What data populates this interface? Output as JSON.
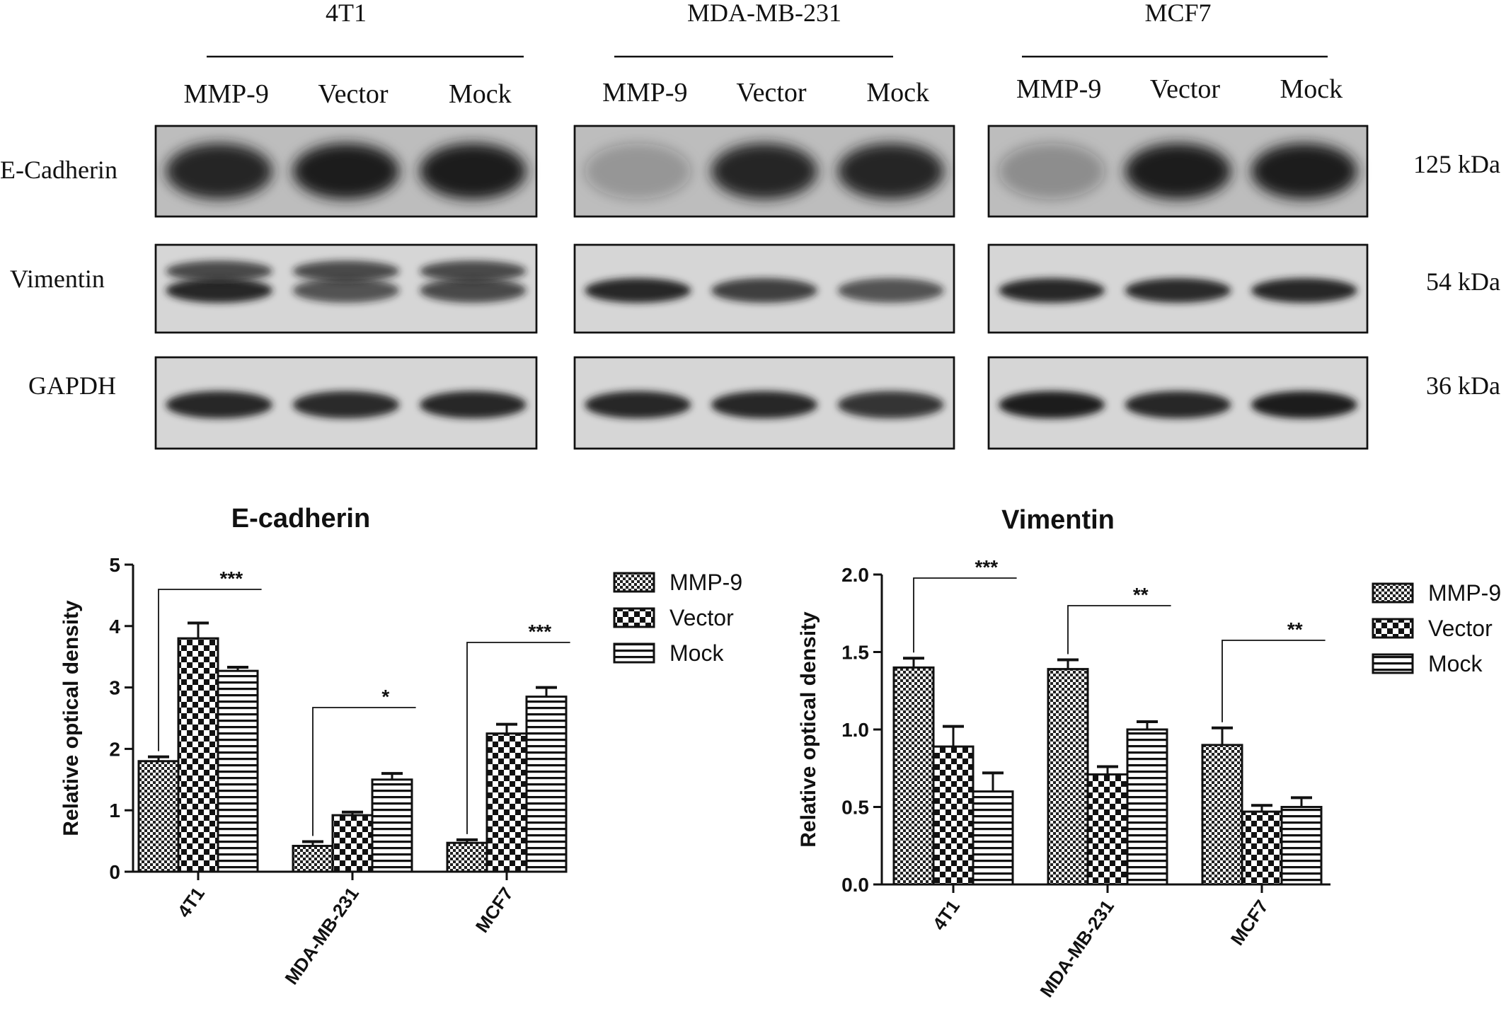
{
  "blots": {
    "groups": [
      {
        "name": "4T1",
        "lanes": [
          "MMP-9",
          "Vector",
          "Mock"
        ]
      },
      {
        "name": "MDA-MB-231",
        "lanes": [
          "MMP-9",
          "Vector",
          "Mock"
        ]
      },
      {
        "name": "MCF7",
        "lanes": [
          "MMP-9",
          "Vector",
          "Mock"
        ]
      }
    ],
    "proteins": [
      {
        "name": "E-Cadherin",
        "size": "125 kDa"
      },
      {
        "name": "Vimentin",
        "size": "54 kDa"
      },
      {
        "name": "GAPDH",
        "size": "36 kDa"
      }
    ],
    "band_color": "#1a1a1a",
    "background_color": "#cfcfcf"
  },
  "chart_data": [
    {
      "type": "bar",
      "title": "E-cadherin",
      "ylabel": "Relative optical density",
      "xlabel": "",
      "categories": [
        "4T1",
        "MDA-MB-231",
        "MCF7"
      ],
      "ylim": [
        0,
        5
      ],
      "yticks": [
        "0",
        "1",
        "2",
        "3",
        "4",
        "5"
      ],
      "series": [
        {
          "name": "MMP-9",
          "values": [
            1.8,
            0.42,
            0.47
          ],
          "errors": [
            0.07,
            0.07,
            0.05
          ]
        },
        {
          "name": "Vector",
          "values": [
            3.8,
            0.92,
            2.25
          ],
          "errors": [
            0.25,
            0.05,
            0.15
          ]
        },
        {
          "name": "Mock",
          "values": [
            3.27,
            1.5,
            2.85
          ],
          "errors": [
            0.06,
            0.1,
            0.15
          ]
        }
      ],
      "significance": [
        "***",
        "*",
        "***"
      ],
      "legend": "top-right"
    },
    {
      "type": "bar",
      "title": "Vimentin",
      "ylabel": "Relative optical density",
      "xlabel": "",
      "categories": [
        "4T1",
        "MDA-MB-231",
        "MCF7"
      ],
      "ylim": [
        0,
        2
      ],
      "yticks": [
        "0.0",
        "0.5",
        "1.0",
        "1.5",
        "2.0"
      ],
      "series": [
        {
          "name": "MMP-9",
          "values": [
            1.4,
            1.39,
            0.9
          ],
          "errors": [
            0.06,
            0.06,
            0.11
          ]
        },
        {
          "name": "Vector",
          "values": [
            0.89,
            0.71,
            0.47
          ],
          "errors": [
            0.13,
            0.05,
            0.04
          ]
        },
        {
          "name": "Mock",
          "values": [
            0.6,
            1.0,
            0.5
          ],
          "errors": [
            0.12,
            0.05,
            0.06
          ]
        }
      ],
      "significance": [
        "***",
        "**",
        "**"
      ],
      "legend": "top-right"
    }
  ]
}
